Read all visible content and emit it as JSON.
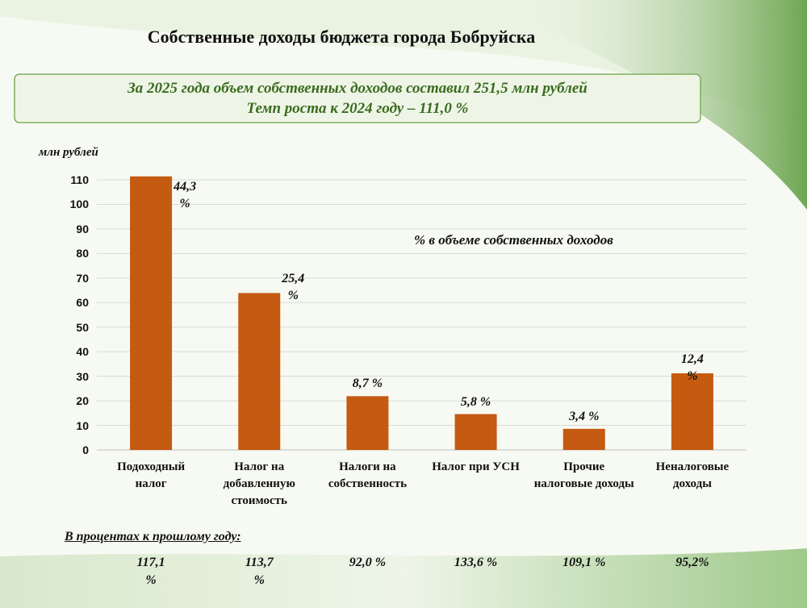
{
  "chart_data": {
    "type": "bar",
    "title": "Собственные доходы бюджета города Бобруйска",
    "subtitle_lines": [
      "За 2025 года объем собственных доходов составил 251,5 млн рублей",
      "Темп роста к 2024 году – 111,0 %"
    ],
    "y_axis_label": "млн рублей",
    "annotation": "%  в объеме собственных доходов",
    "categories": [
      "Подоходный налог",
      "Налог на добавленную стоимость",
      "Налоги на собственность",
      "Налог при УСН",
      "Прочие налоговые доходы",
      "Неналоговые доходы"
    ],
    "values": [
      111.4,
      63.9,
      21.9,
      14.6,
      8.6,
      31.2
    ],
    "share_labels": [
      "44,3 %",
      "25,4 %",
      "8,7 %",
      "5,8 %",
      "3,4 %",
      "12,4 %"
    ],
    "color": "#c55a11",
    "ylim": [
      0,
      110
    ],
    "yticks": [
      0,
      10,
      20,
      30,
      40,
      50,
      60,
      70,
      80,
      90,
      100,
      110
    ],
    "grid": true,
    "growth_title": "В процентах к прошлому году:",
    "growth_labels": [
      "117,1 %",
      "113,7 %",
      "92,0 %",
      "133,6 %",
      "109,1 %",
      "95,2%"
    ]
  }
}
